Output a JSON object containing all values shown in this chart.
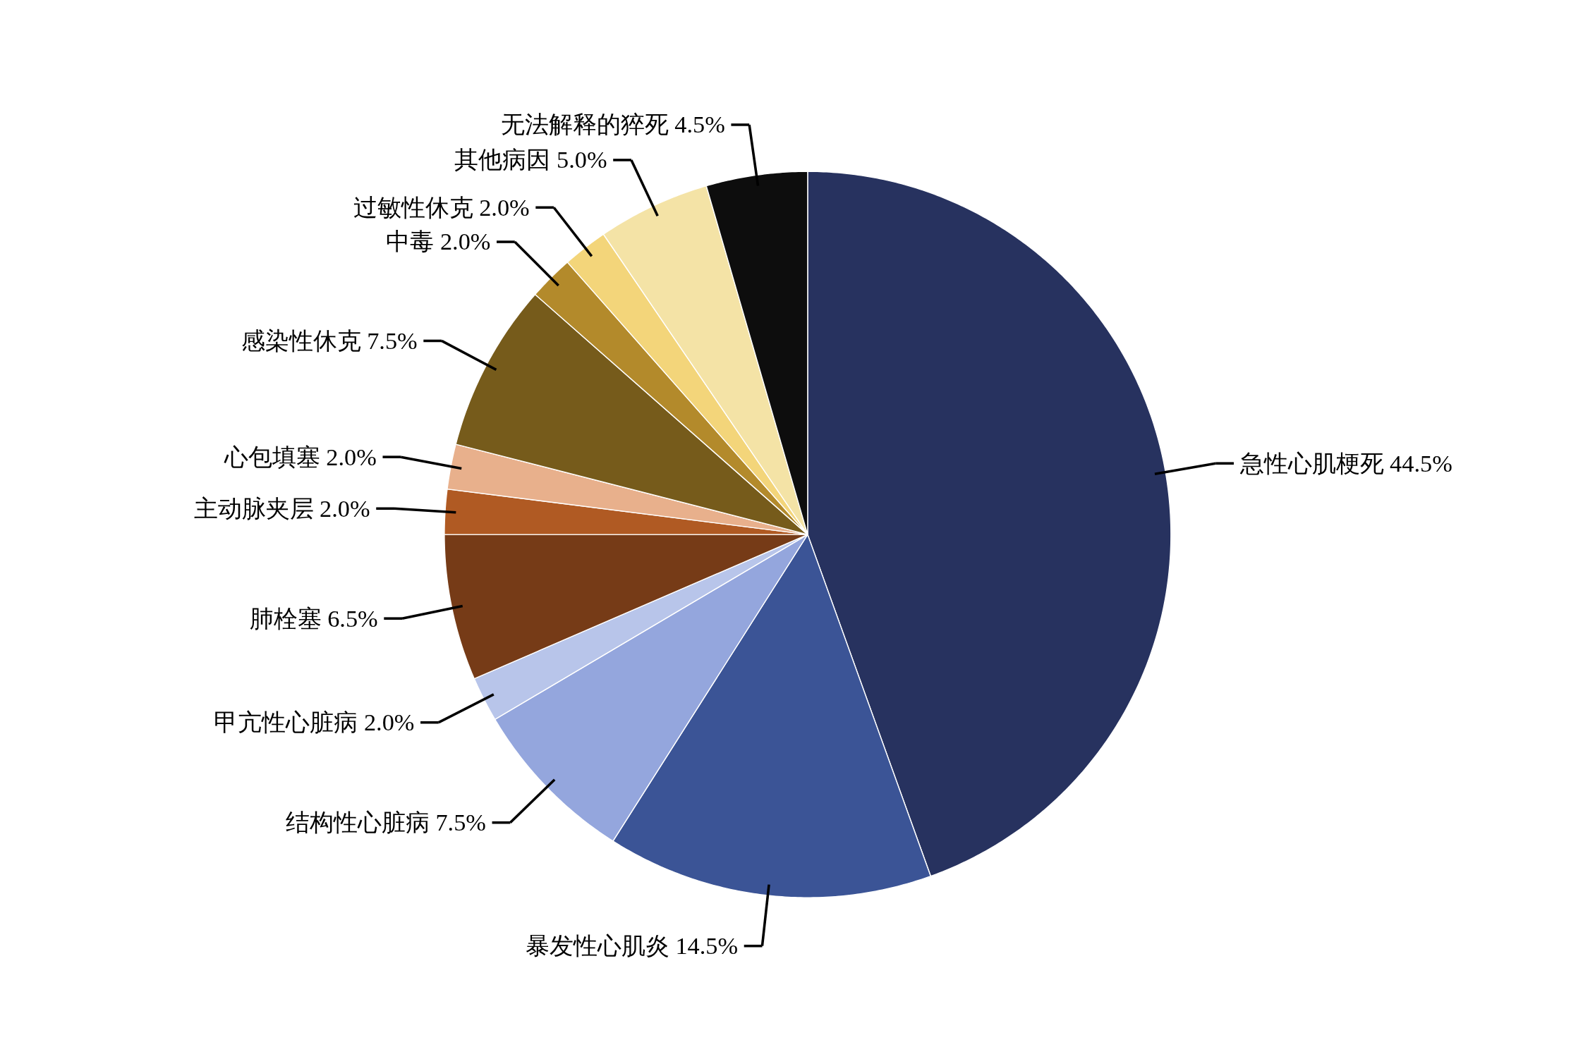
{
  "chart_data": {
    "type": "pie",
    "value_labels": [
      "44.5%",
      "14.5%",
      "7.5%",
      "2.0%",
      "6.5%",
      "2.0%",
      "2.0%",
      "7.5%",
      "2.0%",
      "2.0%",
      "5.0%",
      "4.5%"
    ],
    "categories": [
      "急性心肌梗死",
      "暴发性心肌炎",
      "结构性心脏病",
      "甲亢性心脏病",
      "肺栓塞",
      "主动脉夹层",
      "心包填塞",
      "感染性休克",
      "中毒",
      "过敏性休克",
      "其他病因",
      "无法解释的猝死"
    ],
    "values": [
      44.5,
      14.5,
      7.5,
      2.0,
      6.5,
      2.0,
      2.0,
      7.5,
      2.0,
      2.0,
      5.0,
      4.5
    ],
    "colors": [
      "#27325f",
      "#3b5496",
      "#94a6dd",
      "#b8c5ea",
      "#763b17",
      "#b05a23",
      "#e8b08c",
      "#765b1b",
      "#b38a2b",
      "#f3d57a",
      "#f4e3a6",
      "#0d0d0d"
    ]
  }
}
